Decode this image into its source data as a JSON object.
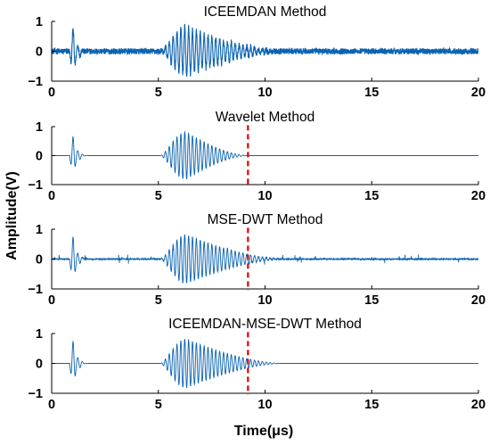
{
  "colors": {
    "signal": "#0b63b0",
    "marker": "#e00000",
    "axis": "#000000"
  },
  "axes": {
    "ylabel": "Amplitude(V)",
    "xlabel": "Time(μs)"
  },
  "chart_data": [
    {
      "type": "line",
      "title": "ICEEMDAN Method",
      "xlim": [
        0,
        20
      ],
      "ylim": [
        -1,
        1
      ],
      "xticks": [
        0,
        5,
        10,
        15,
        20
      ],
      "yticks": [
        -1,
        0,
        1
      ],
      "xticklabels": [
        "0",
        "5",
        "10",
        "15",
        "20"
      ],
      "yticklabels": [
        "−1",
        "0",
        "1"
      ],
      "series": [
        {
          "components": {
            "noise": 0.1,
            "spike": {
              "t": 1.0,
              "amp": 0.7
            },
            "packet": {
              "start": 5.1,
              "peak_t": 6.3,
              "peak_amp": 0.82,
              "end": 10.8,
              "freq_mhz": 5.5
            }
          }
        }
      ],
      "marker_x": null
    },
    {
      "type": "line",
      "title": "Wavelet Method",
      "xlim": [
        0,
        20
      ],
      "ylim": [
        -1,
        1
      ],
      "xticks": [
        0,
        5,
        10,
        15,
        20
      ],
      "yticks": [
        -1,
        0,
        1
      ],
      "xticklabels": [
        "0",
        "5",
        "10",
        "15",
        "20"
      ],
      "yticklabels": [
        "−1",
        "0",
        "1"
      ],
      "series": [
        {
          "components": {
            "noise": 0.0,
            "spike": {
              "t": 1.0,
              "amp": 0.62
            },
            "packet": {
              "start": 5.1,
              "peak_t": 6.3,
              "peak_amp": 0.82,
              "end": 9.2,
              "freq_mhz": 5.5
            }
          }
        }
      ],
      "marker_x": 9.2
    },
    {
      "type": "line",
      "title": "MSE-DWT Method",
      "xlim": [
        0,
        20
      ],
      "ylim": [
        -1,
        1
      ],
      "xticks": [
        0,
        5,
        10,
        15,
        20
      ],
      "yticks": [
        -1,
        0,
        1
      ],
      "xticklabels": [
        "0",
        "5",
        "10",
        "15",
        "20"
      ],
      "yticklabels": [
        "−1",
        "0",
        "1"
      ],
      "series": [
        {
          "components": {
            "noise": 0.02,
            "bursts": 0.1,
            "spike": {
              "t": 1.0,
              "amp": 0.7
            },
            "packet": {
              "start": 5.1,
              "peak_t": 6.3,
              "peak_amp": 0.82,
              "end": 10.8,
              "freq_mhz": 5.5
            }
          }
        }
      ],
      "marker_x": 9.2
    },
    {
      "type": "line",
      "title": "ICEEMDAN-MSE-DWT Method",
      "xlim": [
        0,
        20
      ],
      "ylim": [
        -1,
        1
      ],
      "xticks": [
        0,
        5,
        10,
        15,
        20
      ],
      "yticks": [
        -1,
        0,
        1
      ],
      "xticklabels": [
        "0",
        "5",
        "10",
        "15",
        "20"
      ],
      "yticklabels": [
        "−1",
        "0",
        "1"
      ],
      "series": [
        {
          "components": {
            "noise": 0.0,
            "spike": {
              "t": 1.0,
              "amp": 0.7
            },
            "packet": {
              "start": 5.1,
              "peak_t": 6.3,
              "peak_amp": 0.82,
              "end": 10.8,
              "freq_mhz": 5.5
            }
          }
        }
      ],
      "marker_x": 9.2
    }
  ]
}
